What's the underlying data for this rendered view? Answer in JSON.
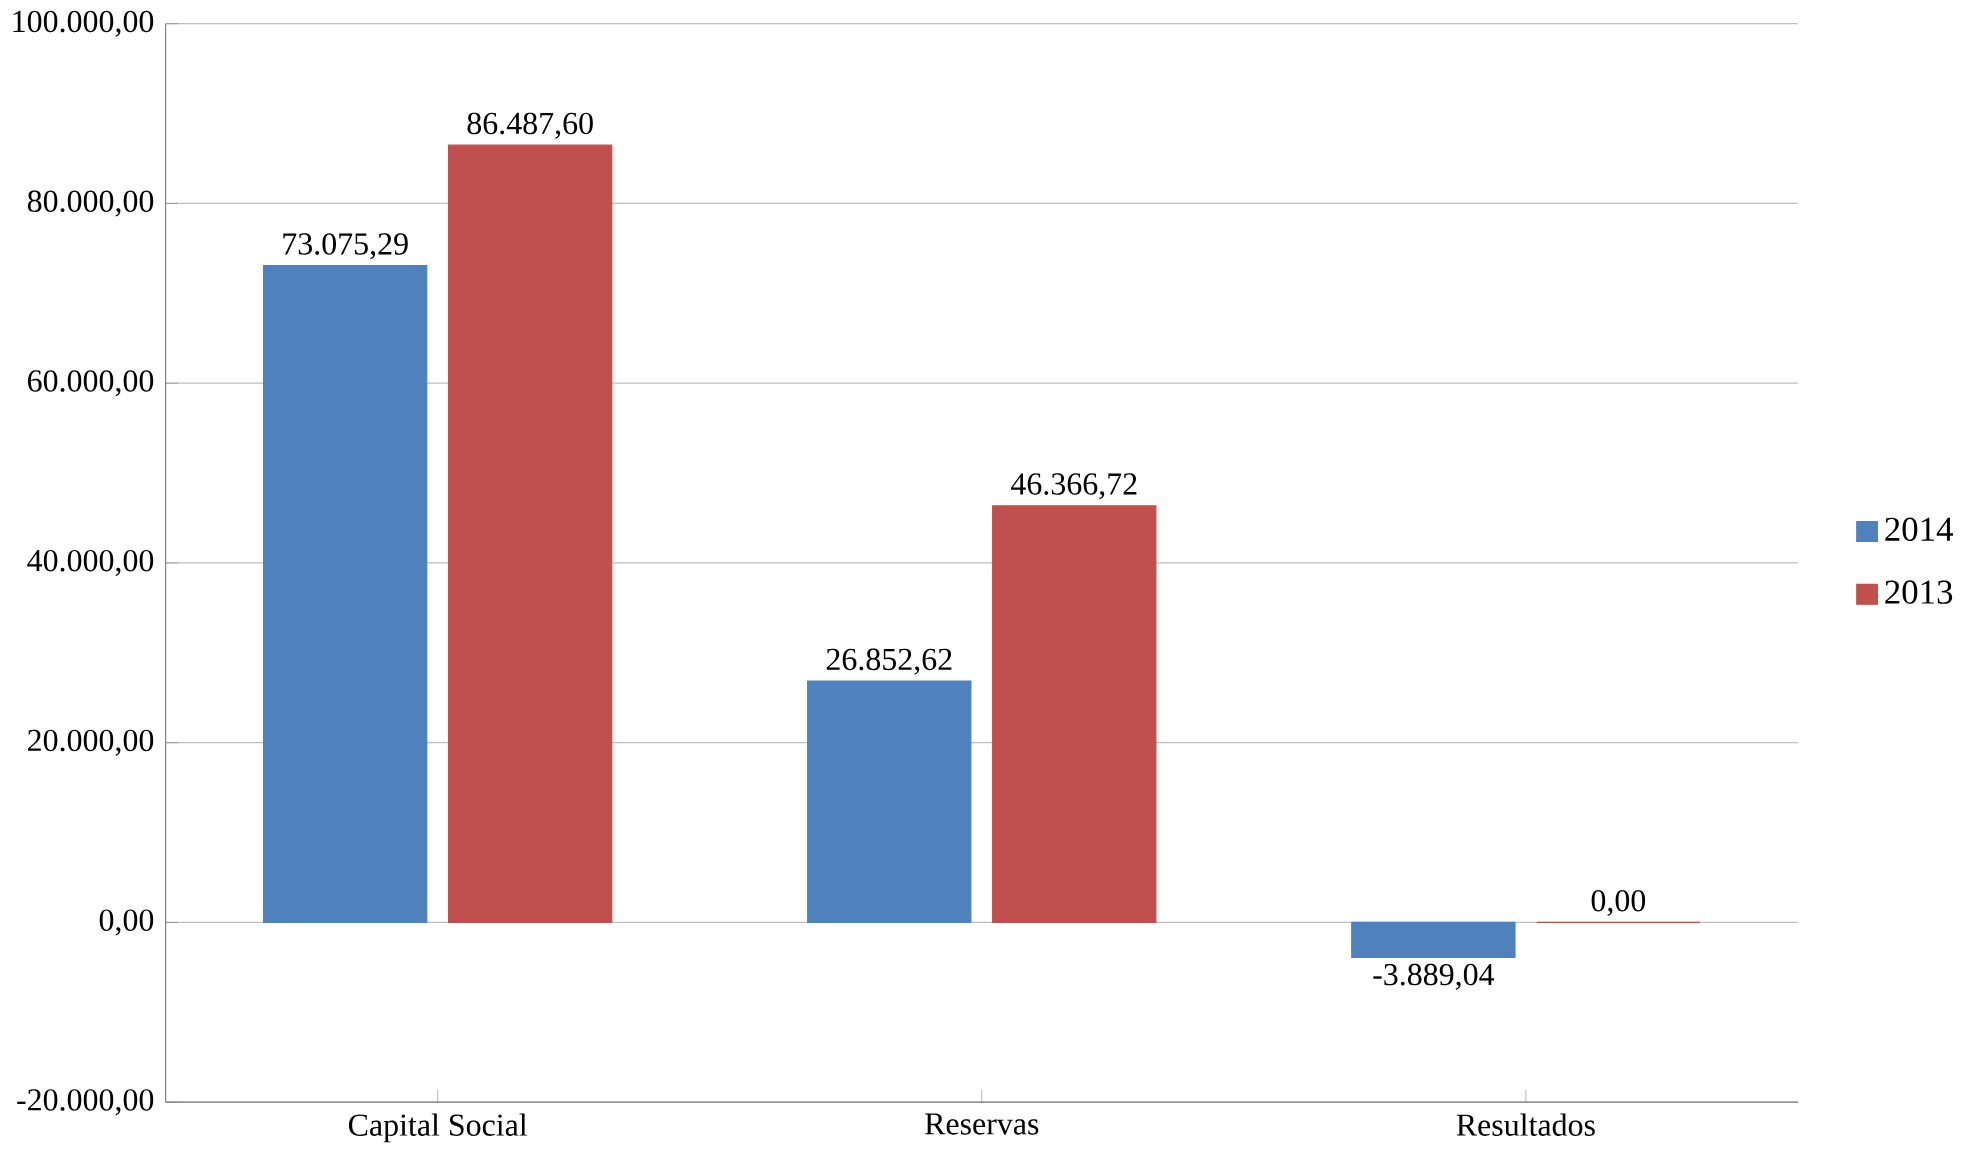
{
  "chart_data": {
    "type": "bar",
    "categories": [
      "Capital Social",
      "Reservas",
      "Resultados"
    ],
    "series": [
      {
        "name": "2014",
        "color": "#4f81bd",
        "values": [
          73075.29,
          26852.62,
          -3889.04
        ],
        "value_labels": [
          "73.075,29",
          "26.852,62",
          "-3.889,04"
        ]
      },
      {
        "name": "2013",
        "color": "#c0504d",
        "values": [
          86487.6,
          46366.72,
          0.0
        ],
        "value_labels": [
          "86.487,60",
          "46.366,72",
          "0,00"
        ]
      }
    ],
    "ylim": [
      -20000,
      100000
    ],
    "yticks": [
      {
        "value": -20000,
        "label": "-20.000,00"
      },
      {
        "value": 0,
        "label": "0,00"
      },
      {
        "value": 20000,
        "label": "20.000,00"
      },
      {
        "value": 40000,
        "label": "40.000,00"
      },
      {
        "value": 60000,
        "label": "60.000,00"
      },
      {
        "value": 80000,
        "label": "80.000,00"
      },
      {
        "value": 100000,
        "label": "100.000,00"
      }
    ],
    "grid": "y",
    "legend": "right"
  }
}
